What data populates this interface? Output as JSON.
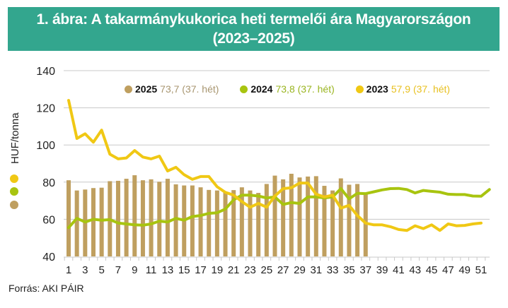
{
  "title": {
    "line1": "1. ábra: A takarmánykukorica heti termelői ára Magyarországon",
    "line2": "(2023–2025)"
  },
  "source": "Forrás: AKI PÁIR",
  "colors": {
    "title_bg": "#33a68e",
    "series_2025": "#bf9f5f",
    "series_2024": "#a8c40f",
    "series_2023": "#f0c814",
    "grid": "#c8c8c8"
  },
  "legend": [
    {
      "year": "2025",
      "value_text": "73,7 (37. hét)",
      "color": "#bf9f5f",
      "text_color": "#a89670"
    },
    {
      "year": "2024",
      "value_text": "73,8 (37. hét)",
      "color": "#a8c40f",
      "text_color": "#9ab520"
    },
    {
      "year": "2023",
      "value_text": "57,9 (37. hét)",
      "color": "#f0c814",
      "text_color": "#e8c020"
    }
  ],
  "chart_data": {
    "type": "bar+line",
    "title": "1. ábra: A takarmánykukorica heti termelői ára Magyarországon (2023–2025)",
    "xlabel": "",
    "ylabel": "HUF/tonna",
    "ylim": [
      40,
      140
    ],
    "yticks": [
      40,
      60,
      80,
      100,
      120,
      140
    ],
    "xticks": [
      "1",
      "3",
      "5",
      "7",
      "9",
      "11",
      "13",
      "15",
      "17",
      "19",
      "21",
      "23",
      "25",
      "27",
      "29",
      "31",
      "33",
      "35",
      "37",
      "39",
      "41",
      "43",
      "45",
      "47",
      "49",
      "51"
    ],
    "x": [
      1,
      2,
      3,
      4,
      5,
      6,
      7,
      8,
      9,
      10,
      11,
      12,
      13,
      14,
      15,
      16,
      17,
      18,
      19,
      20,
      21,
      22,
      23,
      24,
      25,
      26,
      27,
      28,
      29,
      30,
      31,
      32,
      33,
      34,
      35,
      36,
      37,
      38,
      39,
      40,
      41,
      42,
      43,
      44,
      45,
      46,
      47,
      48,
      49,
      50,
      51,
      52
    ],
    "grid": true,
    "legend_position": "top",
    "series": [
      {
        "name": "2025",
        "type": "bar",
        "annotation": "73,7 (37. hét)",
        "values": [
          81,
          75.5,
          76,
          76.8,
          77,
          80.5,
          80.7,
          81.8,
          83.7,
          81,
          81.5,
          80.2,
          81.8,
          78.8,
          78.2,
          78.2,
          77.2,
          75.8,
          75.5,
          74.5,
          75.7,
          77.2,
          75.5,
          74.2,
          79,
          83.5,
          81.5,
          84.5,
          82.5,
          83,
          83.2,
          78,
          75.5,
          82,
          78.6,
          79,
          73.7
        ]
      },
      {
        "name": "2024",
        "type": "line",
        "annotation": "73,8 (37. hét)",
        "values": [
          55.5,
          60.5,
          58.5,
          60,
          59.5,
          59.8,
          58,
          57.5,
          57,
          56.8,
          57.5,
          59,
          58.5,
          60.5,
          59.5,
          61.5,
          62,
          63.2,
          63.5,
          65.5,
          70.5,
          73,
          73,
          72.5,
          71.5,
          72,
          68,
          69,
          68.5,
          72,
          72,
          71.5,
          72,
          76.5,
          71,
          74,
          73.8,
          74.8,
          75.8,
          76.5,
          76.6,
          76,
          74.2,
          75.5,
          75,
          74.6,
          73.5,
          73.3,
          73.3,
          72.5,
          72.4,
          76
        ]
      },
      {
        "name": "2023",
        "type": "line",
        "annotation": "57,9 (37. hét)",
        "values": [
          124,
          103.5,
          106,
          101.5,
          108,
          95,
          92.5,
          93,
          97,
          93.5,
          92.5,
          94,
          86,
          88,
          84,
          81.5,
          83,
          83,
          77.5,
          74.5,
          73,
          69.5,
          66.5,
          68.5,
          66.5,
          72.5,
          76.5,
          77,
          79.5,
          79.5,
          73.5,
          72,
          73,
          66,
          67.5,
          62,
          57.9,
          57,
          57,
          56,
          54.5,
          54,
          56.5,
          55,
          57,
          54,
          57.5,
          56.5,
          56.7,
          57.5,
          58
        ]
      }
    ]
  }
}
